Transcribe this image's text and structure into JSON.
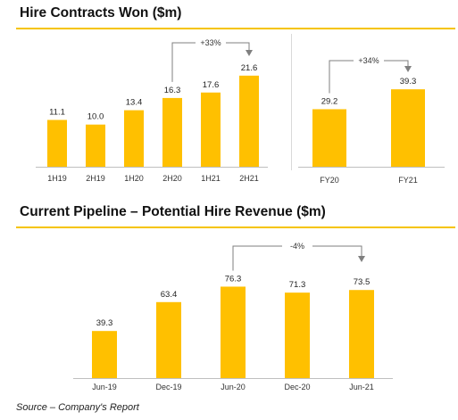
{
  "chart_data": [
    {
      "type": "bar",
      "title": "Hire Contracts Won ($m)",
      "categories": [
        "1H19",
        "2H19",
        "1H20",
        "2H20",
        "1H21",
        "2H21"
      ],
      "values": [
        11.1,
        10.0,
        13.4,
        16.3,
        17.6,
        21.6
      ],
      "annotation": {
        "text": "+33%",
        "from": "2H20",
        "to": "2H21"
      },
      "color": "#FFC000"
    },
    {
      "type": "bar",
      "title": "",
      "categories": [
        "FY20",
        "FY21"
      ],
      "values": [
        29.2,
        39.3
      ],
      "annotation": {
        "text": "+34%",
        "from": "FY20",
        "to": "FY21"
      },
      "color": "#FFC000"
    },
    {
      "type": "bar",
      "title": "Current Pipeline – Potential Hire Revenue ($m)",
      "categories": [
        "Jun-19",
        "Dec-19",
        "Jun-20",
        "Dec-20",
        "Jun-21"
      ],
      "values": [
        39.3,
        63.4,
        76.3,
        71.3,
        73.5
      ],
      "annotation": {
        "text": "-4%",
        "from": "Jun-20",
        "to": "Jun-21"
      },
      "color": "#FFC000"
    }
  ],
  "source": "Source – Company's Report"
}
